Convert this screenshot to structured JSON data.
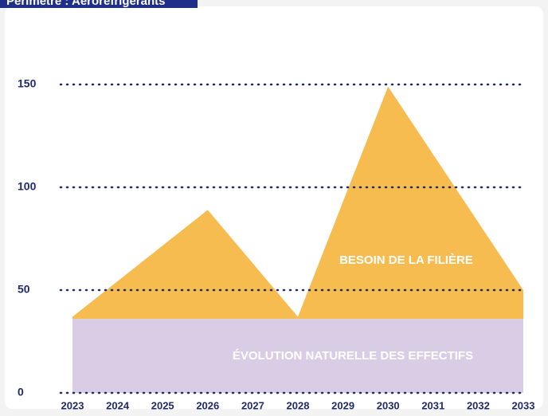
{
  "chart_data": {
    "type": "stacked_area",
    "title": "Périmètre : Aéroréfrigérants",
    "x": [
      2023,
      2026,
      2028,
      2030,
      2033
    ],
    "series": [
      {
        "name": "ÉVOLUTION NATURELLE DES EFFECTIFS",
        "color": "#d9cde6",
        "values": [
          36,
          36,
          36,
          36,
          36
        ]
      },
      {
        "name": "BESOIN DE LA FILIÈRE",
        "color": "#f7bc50",
        "values": [
          1,
          53,
          1,
          113,
          14
        ]
      }
    ],
    "xlim": [
      2023,
      2033
    ],
    "xticks": [
      2023,
      2024,
      2025,
      2026,
      2027,
      2028,
      2029,
      2030,
      2031,
      2032,
      2033
    ],
    "ylim": [
      0,
      150
    ],
    "yticks": [
      0,
      50,
      100,
      150
    ],
    "grid": true
  }
}
